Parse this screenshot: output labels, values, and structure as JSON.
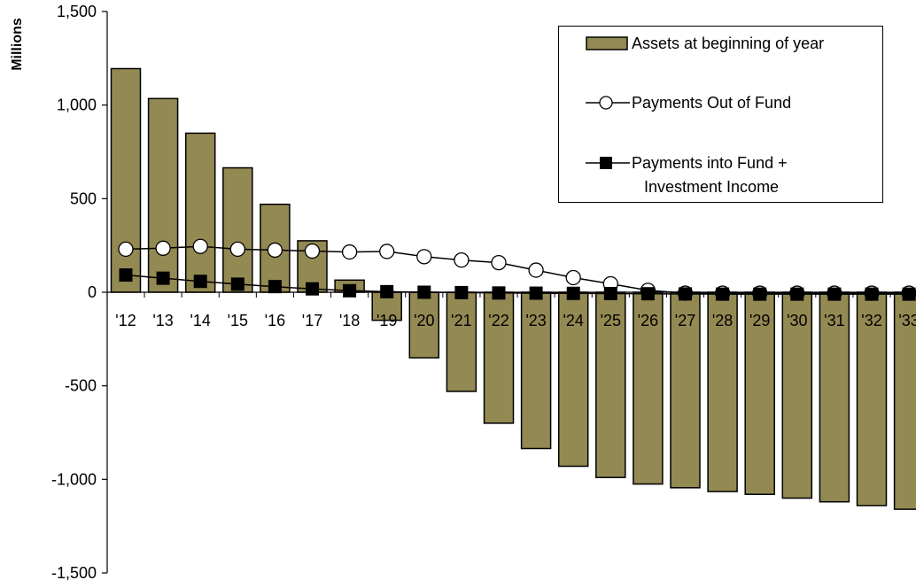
{
  "chart_data": {
    "type": "bar+line",
    "ylabel": "Millions",
    "ylim": [
      -1500,
      1500
    ],
    "yticks": [
      1500,
      1000,
      500,
      0,
      -500,
      -1000,
      -1500
    ],
    "ytick_labels": [
      "1,500",
      "1,000",
      "500",
      "0",
      "-500",
      "-1,000",
      "-1,500"
    ],
    "categories": [
      "'12",
      "'13",
      "'14",
      "'15",
      "'16",
      "'17",
      "'18",
      "'19",
      "'20",
      "'21",
      "'22",
      "'23",
      "'24",
      "'25",
      "'26",
      "'27",
      "'28",
      "'29",
      "'30",
      "'31",
      "'32",
      "'33"
    ],
    "series": [
      {
        "name": "Assets at beginning of year",
        "kind": "bar",
        "color": "#938953",
        "values": [
          1195,
          1035,
          850,
          665,
          470,
          275,
          65,
          -150,
          -350,
          -530,
          -700,
          -835,
          -930,
          -990,
          -1025,
          -1045,
          -1065,
          -1080,
          -1100,
          -1120,
          -1140,
          -1160
        ]
      },
      {
        "name": "Payments Out of Fund",
        "kind": "line",
        "marker": "circle-open",
        "values": [
          230,
          235,
          245,
          230,
          225,
          220,
          215,
          218,
          190,
          172,
          158,
          118,
          78,
          45,
          10,
          -5,
          -5,
          -5,
          -5,
          -5,
          -5,
          -5
        ]
      },
      {
        "name": "Payments into Fund + Investment Income",
        "name_lines": [
          "Payments into Fund +",
          "Investment Income"
        ],
        "kind": "line",
        "marker": "square-filled",
        "values": [
          92,
          75,
          58,
          43,
          30,
          18,
          8,
          3,
          0,
          -2,
          -4,
          -5,
          -6,
          -7,
          -8,
          -9,
          -10,
          -10,
          -10,
          -10,
          -10,
          -10
        ]
      }
    ],
    "legend_position": "top-right",
    "grid": false
  }
}
